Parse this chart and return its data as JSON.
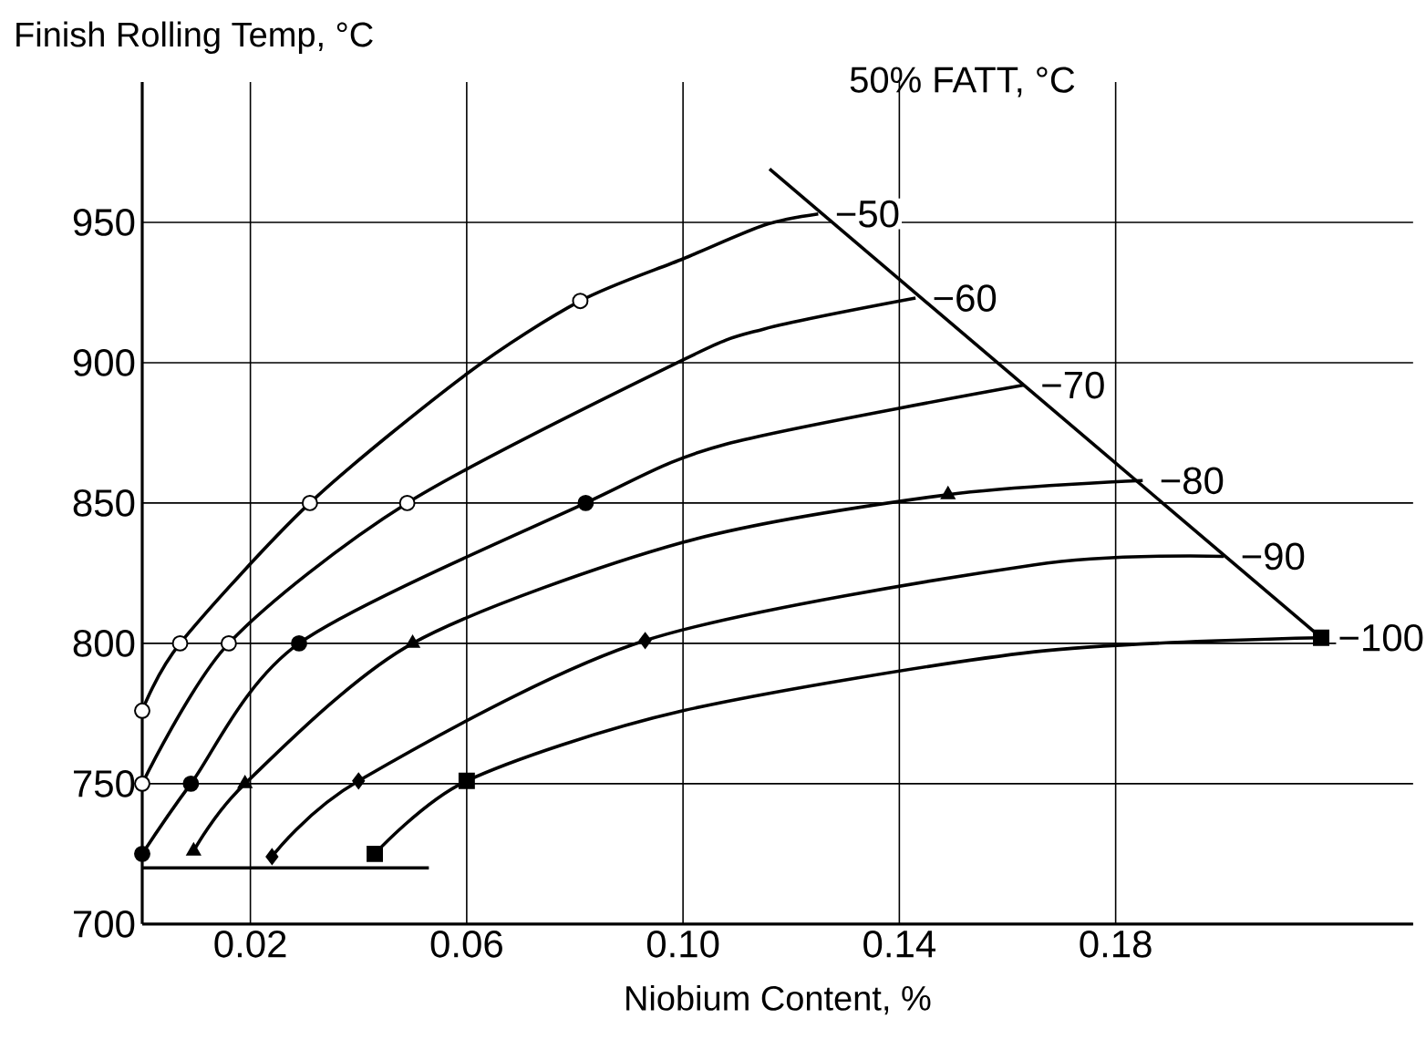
{
  "chart_data": {
    "type": "line",
    "xlabel": "Niobium Content, %",
    "ylabel": "Finish Rolling Temp, °C",
    "legend_title": "50% FATT, °C",
    "xlim": [
      0,
      0.235
    ],
    "ylim": [
      700,
      1000
    ],
    "xticks": [
      0.02,
      0.06,
      {
        "value": 0.1,
        "label": "0.10"
      },
      0.14,
      0.18
    ],
    "yticks": [
      700,
      750,
      800,
      850,
      900,
      950
    ],
    "grid": true,
    "series": [
      {
        "name": "−50",
        "color": "#000000",
        "x": [
          0,
          0.007,
          0.031,
          0.06,
          0.081,
          0.1,
          0.115,
          0.125
        ],
        "values": [
          776,
          800,
          850,
          896,
          922,
          937,
          949,
          953
        ]
      },
      {
        "name": "−60",
        "color": "#000000",
        "x": [
          0,
          0.016,
          0.049,
          0.1,
          0.115,
          0.143
        ],
        "values": [
          750,
          800,
          850,
          901,
          912,
          923
        ]
      },
      {
        "name": "−70",
        "color": "#000000",
        "x": [
          0,
          0.009,
          0.029,
          0.082,
          0.108,
          0.163
        ],
        "values": [
          725,
          750,
          800,
          850,
          871,
          892
        ]
      },
      {
        "name": "−80",
        "color": "#000000",
        "x": [
          0.0095,
          0.019,
          0.05,
          0.1,
          0.149,
          0.185
        ],
        "values": [
          726,
          750,
          800,
          836,
          853,
          858
        ]
      },
      {
        "name": "−90",
        "color": "#000000",
        "x": [
          0.024,
          0.04,
          0.093,
          0.165,
          0.2
        ],
        "values": [
          724,
          751,
          801,
          828,
          831
        ]
      },
      {
        "name": "−100",
        "color": "#000000",
        "x": [
          0.043,
          0.06,
          0.1,
          0.165,
          0.218
        ],
        "values": [
          725,
          751,
          776,
          797,
          802
        ]
      },
      {
        "color": "#000000",
        "x": [
          0.116,
          0.218
        ],
        "values": [
          969,
          802
        ]
      },
      {
        "color": "#000000",
        "x": [
          0,
          0.053
        ],
        "values": [
          720,
          720
        ]
      },
      {
        "type": "scatter",
        "marker": "circle",
        "color": "#ffffff",
        "x": [
          0,
          0.007,
          0.031,
          0.081,
          0,
          0.016,
          0.049
        ],
        "values": [
          776,
          800,
          850,
          922,
          750,
          800,
          850
        ]
      },
      {
        "type": "scatter",
        "marker": "circle",
        "color": "#000000",
        "x": [
          0,
          0.009,
          0.029,
          0.082
        ],
        "values": [
          725,
          750,
          800,
          850
        ]
      },
      {
        "type": "scatter",
        "marker": "triangle",
        "color": "#000000",
        "x": [
          0.0095,
          0.019,
          0.05,
          0.149
        ],
        "values": [
          726,
          750,
          800,
          853
        ]
      },
      {
        "type": "scatter",
        "marker": "diamond",
        "color": "#000000",
        "x": [
          0.024,
          0.04,
          0.093
        ],
        "values": [
          724,
          751,
          801
        ]
      },
      {
        "type": "scatter",
        "marker": "square",
        "color": "#000000",
        "x": [
          0.043,
          0.06,
          0.218
        ],
        "values": [
          725,
          751,
          802
        ]
      }
    ]
  }
}
